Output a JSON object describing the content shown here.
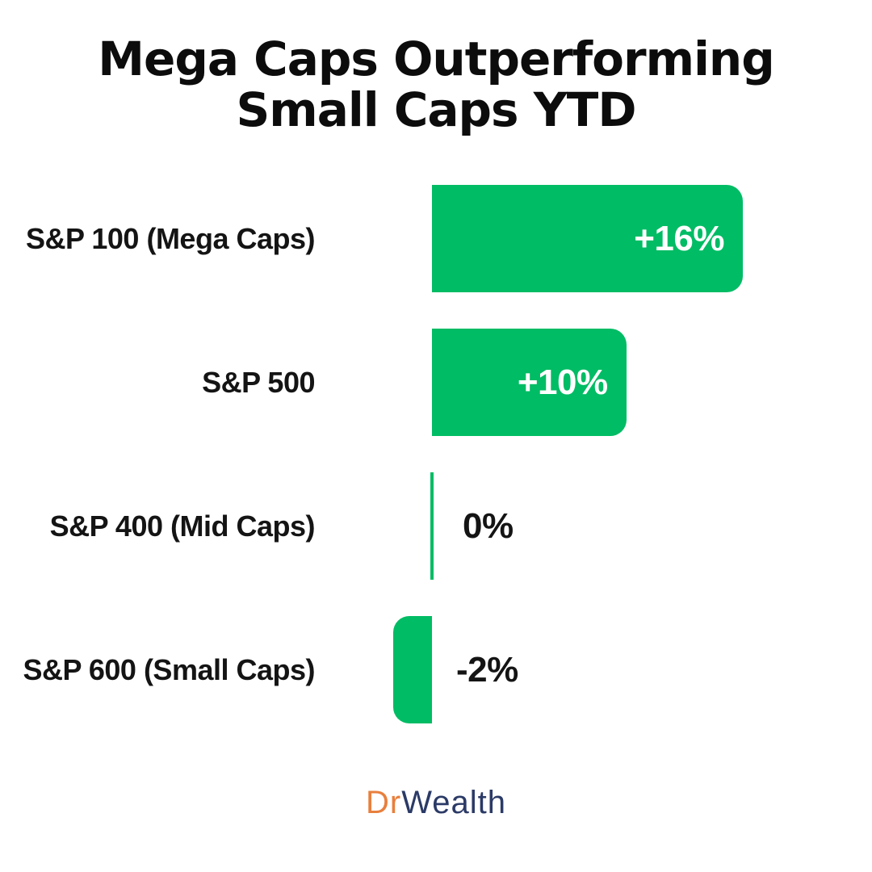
{
  "title": {
    "line1": "Mega Caps Outperforming",
    "line2": "Small Caps YTD"
  },
  "chart_data": {
    "type": "bar",
    "orientation": "horizontal",
    "title": "Mega Caps Outperforming Small Caps YTD",
    "categories": [
      "S&P 100 (Mega Caps)",
      "S&P 500",
      "S&P 400 (Mid Caps)",
      "S&P 600 (Small Caps)"
    ],
    "values": [
      16,
      10,
      0,
      -2
    ],
    "value_labels": [
      "+16%",
      "+10%",
      "0%",
      "-2%"
    ],
    "unit": "% YTD return",
    "xlim": [
      -2,
      16
    ],
    "grid": false,
    "legend": false,
    "bar_color": "#00bc64",
    "value_label_inside_color": "#ffffff",
    "value_label_outside_color": "#141414"
  },
  "footer": {
    "logo_prefix": "Dr",
    "logo_suffix": "Wealth",
    "logo_prefix_color": "#e87f3d",
    "logo_suffix_color": "#2b3a66"
  },
  "colors": {
    "background": "#ffffff",
    "title_text": "#0c0c0c",
    "category_text": "#141414",
    "bar_green": "#00bc64"
  }
}
